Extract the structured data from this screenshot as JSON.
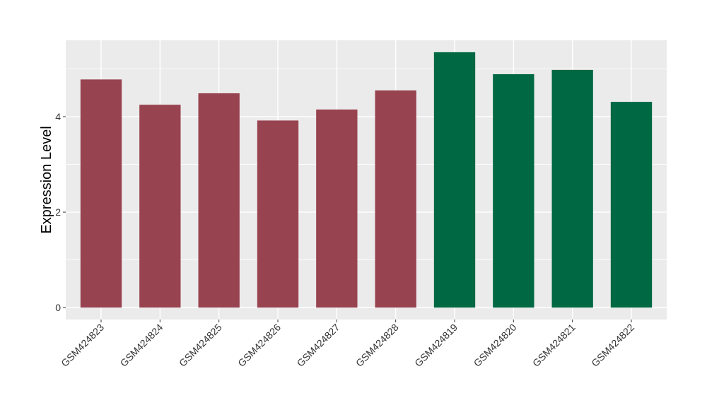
{
  "chart_data": {
    "type": "bar",
    "title": "",
    "xlabel": "",
    "ylabel": "Expression Level",
    "categories": [
      "GSM424823",
      "GSM424824",
      "GSM424825",
      "GSM424826",
      "GSM424827",
      "GSM424828",
      "GSM424819",
      "GSM424820",
      "GSM424821",
      "GSM424822"
    ],
    "values": [
      4.78,
      4.25,
      4.49,
      3.92,
      4.15,
      4.55,
      5.35,
      4.89,
      4.98,
      4.31
    ],
    "bar_colors": [
      "#984350",
      "#984350",
      "#984350",
      "#984350",
      "#984350",
      "#984350",
      "#006843",
      "#006843",
      "#006843",
      "#006843"
    ],
    "ylim": [
      -0.25,
      5.6
    ],
    "yticks": [
      0,
      2,
      4
    ],
    "ytick_labels": [
      "0",
      "2",
      "4"
    ],
    "grid": true,
    "panel_background": "#EBEBEB",
    "grid_color": "#FFFFFF"
  }
}
